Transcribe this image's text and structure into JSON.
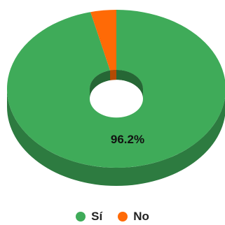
{
  "chart_data": {
    "type": "pie",
    "categories": [
      "Sí",
      "No"
    ],
    "values": [
      96.2,
      3.8
    ],
    "colors": [
      "#3fab59",
      "#ff6a06"
    ],
    "data_labels": [
      "96.2%"
    ],
    "legend_position": "bottom"
  }
}
